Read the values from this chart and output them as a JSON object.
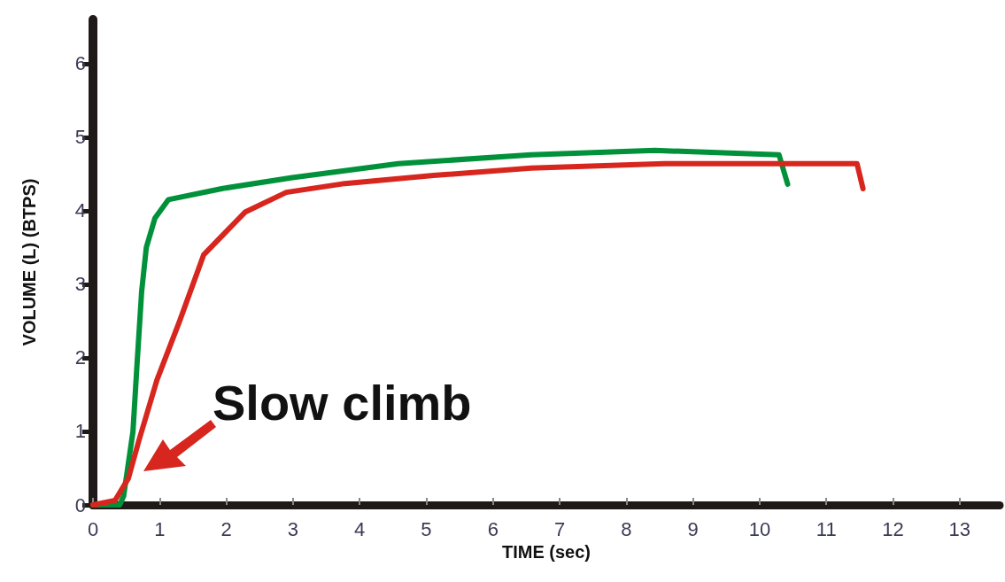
{
  "chart_data": {
    "type": "line",
    "xlabel": "TIME (sec)",
    "ylabel": "VOLUME (L) (BTPS)",
    "xlim": [
      0,
      13.6
    ],
    "xticks": [
      0,
      1,
      2,
      3,
      4,
      5,
      6,
      7,
      8,
      9,
      10,
      11,
      12,
      13
    ],
    "ylim": [
      0,
      6.6
    ],
    "yticks": [
      0,
      1,
      2,
      3,
      4,
      5,
      6
    ],
    "grid": false,
    "marker": "none",
    "line_style": "solid",
    "series": [
      {
        "color": "#00913a",
        "x": [
          0,
          0.4,
          0.46,
          0.6,
          0.66,
          0.73,
          0.8,
          0.93,
          1.13,
          1.93,
          2.99,
          4.58,
          6.57,
          8.43,
          10.29,
          10.42
        ],
        "values": [
          0,
          0,
          0.12,
          1.0,
          1.9,
          2.9,
          3.5,
          3.9,
          4.15,
          4.3,
          4.45,
          4.64,
          4.76,
          4.82,
          4.76,
          4.36
        ]
      },
      {
        "color": "#d7261e",
        "x": [
          0,
          0.33,
          0.53,
          0.69,
          0.96,
          1.3,
          1.66,
          2.28,
          2.9,
          3.78,
          5.11,
          6.57,
          8.57,
          11.46,
          11.55
        ],
        "values": [
          0,
          0.06,
          0.36,
          0.88,
          1.7,
          2.5,
          3.4,
          3.98,
          4.25,
          4.37,
          4.48,
          4.58,
          4.64,
          4.64,
          4.3
        ]
      }
    ],
    "annotations": [
      "Slow climb"
    ]
  }
}
